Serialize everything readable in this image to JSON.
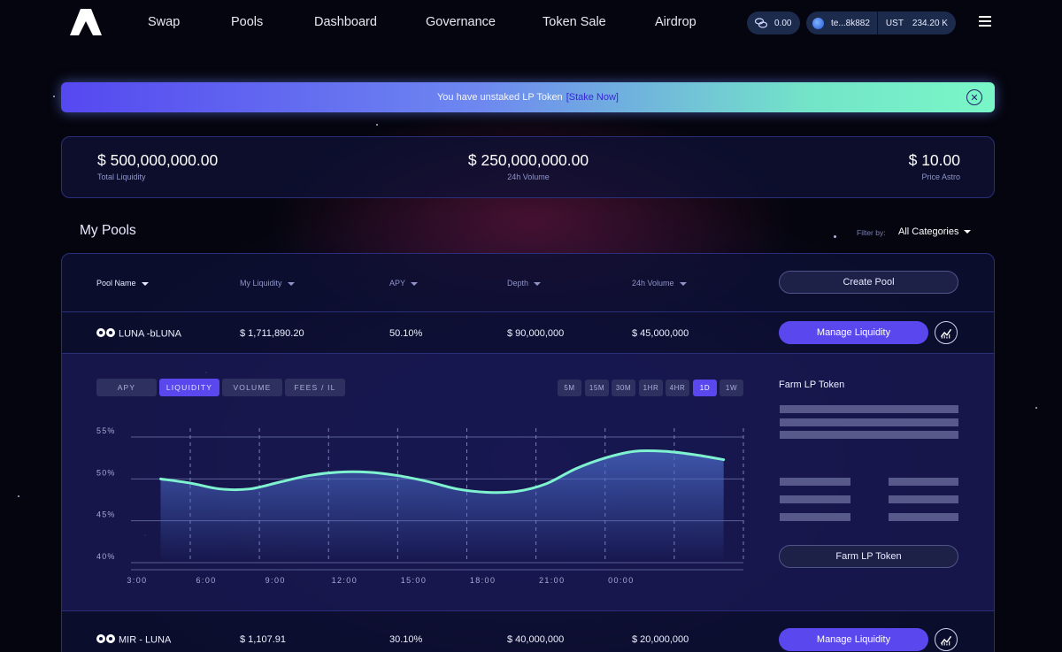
{
  "nav": {
    "links": [
      "Swap",
      "Pools",
      "Dashboard",
      "Governance",
      "Token Sale",
      "Airdrop"
    ],
    "balance": "0.00",
    "wallet_address": "te...8k882",
    "wallet_currency": "UST",
    "wallet_amount": "234.20 K"
  },
  "banner": {
    "text": "You have unstaked LP Token",
    "link": "[Stake Now]"
  },
  "stats": [
    {
      "value": "$ 500,000,000.00",
      "label": "Total Liquidity"
    },
    {
      "value": "$ 250,000,000.00",
      "label": "24h Volume"
    },
    {
      "value": "$ 10.00",
      "label": "Price Astro"
    }
  ],
  "my_pools": {
    "title": "My Pools",
    "filter_label": "Filter by:",
    "filter_value": "All Categories",
    "columns": [
      "Pool Name",
      "My Liquidity",
      "APY",
      "Depth",
      "24h Volume"
    ],
    "create_pool": "Create Pool",
    "rows": [
      {
        "name": "LUNA -bLUNA",
        "liquidity": "$ 1,711,890.20",
        "apy": "50.10%",
        "depth": "$ 90,000,000",
        "volume": "$ 45,000,000",
        "action": "Manage Liquidity"
      },
      {
        "name": "MIR - LUNA",
        "liquidity": "$ 1,107.91",
        "apy": "30.10%",
        "depth": "$ 40,000,000",
        "volume": "$ 20,000,000",
        "action": "Manage Liquidity"
      }
    ]
  },
  "chart_panel": {
    "tabs": [
      "APY",
      "LIQUIDITY",
      "VOLUME",
      "FEES / IL"
    ],
    "active_tab": "LIQUIDITY",
    "ranges": [
      "5M",
      "15M",
      "30M",
      "1HR",
      "4HR",
      "1D",
      "1W"
    ],
    "active_range": "1D",
    "farm_title": "Farm LP Token",
    "farm_button": "Farm LP Token"
  },
  "chart_data": {
    "type": "area",
    "x": [
      "3:00",
      "6:00",
      "9:00",
      "12:00",
      "15:00",
      "18:00",
      "21:00",
      "00:00"
    ],
    "y_ticks": [
      "55%",
      "50%",
      "45%",
      "40%"
    ],
    "ylim": [
      40,
      55
    ],
    "points": [
      [
        1.5,
        50.0
      ],
      [
        3.0,
        49.5
      ],
      [
        4.5,
        48.8
      ],
      [
        6.0,
        48.8
      ],
      [
        7.5,
        49.6
      ],
      [
        9.0,
        50.4
      ],
      [
        10.5,
        50.8
      ],
      [
        12.0,
        50.8
      ],
      [
        13.5,
        50.4
      ],
      [
        15.0,
        49.7
      ],
      [
        16.5,
        48.8
      ],
      [
        18.0,
        48.4
      ],
      [
        19.5,
        48.5
      ],
      [
        21.0,
        49.4
      ],
      [
        22.5,
        51.2
      ],
      [
        24.0,
        52.5
      ],
      [
        25.5,
        53.3
      ],
      [
        27.0,
        53.3
      ],
      [
        28.5,
        52.9
      ],
      [
        30.0,
        52.3
      ]
    ],
    "colors": {
      "line": "#7ff2cf",
      "fill_top": "#4b6bc9"
    },
    "grid": true
  }
}
